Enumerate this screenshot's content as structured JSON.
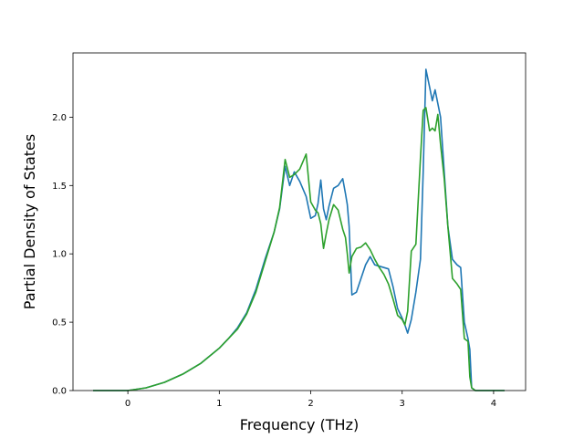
{
  "chart_data": {
    "type": "line",
    "title": "",
    "xlabel": "Frequency (THz)",
    "ylabel": "Partial Density of States",
    "xlim": [
      -0.6,
      4.35
    ],
    "ylim": [
      0.0,
      2.47
    ],
    "xticks": [
      0,
      1,
      2,
      3,
      4
    ],
    "yticks": [
      0.0,
      0.5,
      1.0,
      1.5,
      2.0
    ],
    "xtick_labels": [
      "0",
      "1",
      "2",
      "3",
      "4"
    ],
    "ytick_labels": [
      "0.0",
      "0.5",
      "1.0",
      "1.5",
      "2.0"
    ],
    "grid": false,
    "legend": "none",
    "series": [
      {
        "color": "#1f77b4",
        "x": [
          -0.38,
          -0.2,
          0.0,
          0.2,
          0.4,
          0.6,
          0.8,
          1.0,
          1.1,
          1.2,
          1.3,
          1.4,
          1.5,
          1.6,
          1.66,
          1.72,
          1.77,
          1.82,
          1.88,
          1.95,
          2.0,
          2.05,
          2.08,
          2.11,
          2.14,
          2.17,
          2.2,
          2.25,
          2.3,
          2.35,
          2.38,
          2.4,
          2.42,
          2.45,
          2.5,
          2.55,
          2.6,
          2.65,
          2.7,
          2.75,
          2.8,
          2.85,
          2.9,
          2.95,
          3.0,
          3.03,
          3.06,
          3.1,
          3.15,
          3.2,
          3.23,
          3.26,
          3.3,
          3.33,
          3.36,
          3.39,
          3.42,
          3.46,
          3.5,
          3.55,
          3.6,
          3.64,
          3.68,
          3.72,
          3.74,
          3.76,
          3.8,
          4.12
        ],
        "y": [
          0.0,
          0.0,
          0.0,
          0.02,
          0.06,
          0.12,
          0.2,
          0.31,
          0.38,
          0.46,
          0.57,
          0.74,
          0.96,
          1.16,
          1.33,
          1.64,
          1.5,
          1.6,
          1.53,
          1.42,
          1.26,
          1.28,
          1.37,
          1.54,
          1.33,
          1.25,
          1.35,
          1.48,
          1.5,
          1.55,
          1.44,
          1.36,
          1.2,
          0.7,
          0.72,
          0.82,
          0.92,
          0.98,
          0.92,
          0.91,
          0.9,
          0.89,
          0.76,
          0.6,
          0.53,
          0.48,
          0.42,
          0.52,
          0.72,
          0.96,
          1.6,
          2.35,
          2.22,
          2.12,
          2.2,
          2.1,
          2.0,
          1.6,
          1.2,
          0.96,
          0.92,
          0.9,
          0.5,
          0.38,
          0.3,
          0.02,
          0.0,
          0.0
        ]
      },
      {
        "color": "#2ca02c",
        "x": [
          -0.38,
          -0.2,
          0.0,
          0.2,
          0.4,
          0.6,
          0.8,
          1.0,
          1.1,
          1.2,
          1.3,
          1.4,
          1.5,
          1.6,
          1.66,
          1.72,
          1.77,
          1.82,
          1.88,
          1.95,
          2.0,
          2.05,
          2.08,
          2.11,
          2.14,
          2.17,
          2.2,
          2.25,
          2.3,
          2.35,
          2.38,
          2.4,
          2.42,
          2.45,
          2.5,
          2.55,
          2.6,
          2.65,
          2.7,
          2.75,
          2.8,
          2.85,
          2.9,
          2.95,
          3.0,
          3.03,
          3.06,
          3.1,
          3.15,
          3.2,
          3.23,
          3.26,
          3.3,
          3.33,
          3.36,
          3.39,
          3.42,
          3.46,
          3.5,
          3.55,
          3.6,
          3.64,
          3.68,
          3.72,
          3.74,
          3.76,
          3.8,
          4.12
        ],
        "y": [
          0.0,
          0.0,
          0.0,
          0.02,
          0.06,
          0.12,
          0.2,
          0.31,
          0.38,
          0.45,
          0.56,
          0.72,
          0.94,
          1.16,
          1.34,
          1.69,
          1.56,
          1.58,
          1.62,
          1.73,
          1.38,
          1.32,
          1.3,
          1.22,
          1.04,
          1.15,
          1.25,
          1.36,
          1.32,
          1.18,
          1.12,
          1.0,
          0.86,
          0.98,
          1.04,
          1.05,
          1.08,
          1.03,
          0.96,
          0.9,
          0.85,
          0.78,
          0.67,
          0.55,
          0.52,
          0.48,
          0.58,
          1.02,
          1.07,
          1.7,
          2.05,
          2.07,
          1.9,
          1.92,
          1.9,
          2.02,
          1.8,
          1.55,
          1.2,
          0.82,
          0.78,
          0.74,
          0.38,
          0.36,
          0.1,
          0.02,
          0.0,
          0.0
        ]
      }
    ]
  }
}
